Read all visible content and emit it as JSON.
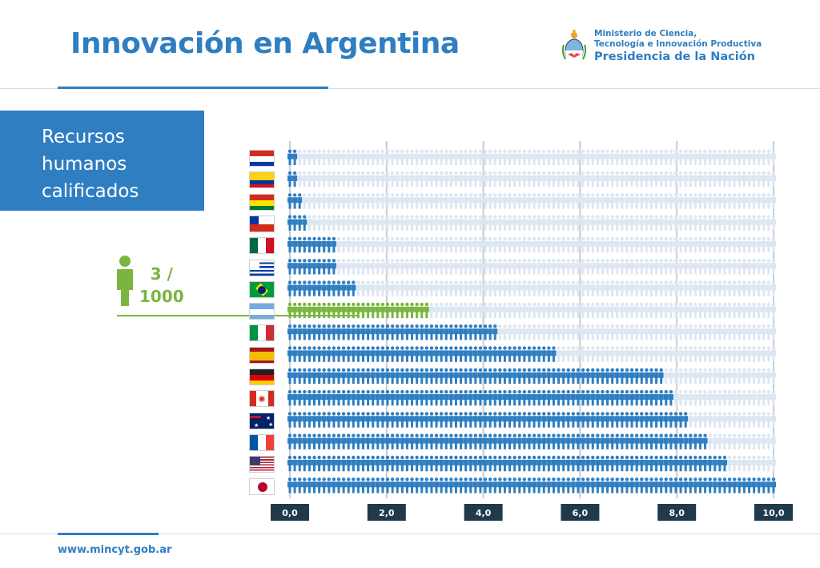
{
  "header": {
    "title": "Innovación en Argentina",
    "logo_line1": "Ministerio de Ciencia,",
    "logo_line2": "Tecnología e Innovación Productiva",
    "logo_line3": "Presidencia de la Nación",
    "logo_icon": "argentina-coat-of-arms-icon"
  },
  "section": {
    "lines": [
      "Recursos",
      "humanos",
      "calificados"
    ]
  },
  "callout": {
    "value_line1": "3 /",
    "value_line2": "1000",
    "icon": "person-icon"
  },
  "footer": {
    "url": "www.mincyt.gob.ar"
  },
  "colors": {
    "primary": "#2f7ec2",
    "highlight": "#7ab541",
    "inactive": "#dde7f1",
    "axis_label_bg": "#1f3a4c"
  },
  "chart_data": {
    "type": "bar",
    "orientation": "horizontal",
    "unit_glyph": "person-icon",
    "units_per_axis_unit": 10,
    "xlim": [
      0,
      10
    ],
    "xticks": [
      "0,0",
      "2,0",
      "4,0",
      "6,0",
      "8,0",
      "10,0"
    ],
    "highlight_index": 7,
    "categories": [
      "Paraguay",
      "Colombia",
      "Bolivia",
      "Chile",
      "Mexico",
      "Uruguay",
      "Brazil",
      "Argentina",
      "Italy",
      "Spain",
      "Germany",
      "Canada",
      "Australia",
      "France",
      "United States",
      "Japan"
    ],
    "flag_icons": [
      "paraguay-flag-icon",
      "colombia-flag-icon",
      "bolivia-flag-icon",
      "chile-flag-icon",
      "mexico-flag-icon",
      "uruguay-flag-icon",
      "brazil-flag-icon",
      "argentina-flag-icon",
      "italy-flag-icon",
      "spain-flag-icon",
      "germany-flag-icon",
      "canada-flag-icon",
      "australia-flag-icon",
      "france-flag-icon",
      "united-states-flag-icon",
      "japan-flag-icon"
    ],
    "values": [
      0.2,
      0.2,
      0.3,
      0.4,
      1.0,
      1.0,
      1.4,
      2.9,
      4.3,
      5.5,
      7.7,
      7.9,
      8.2,
      8.6,
      9.0,
      10.0
    ]
  }
}
